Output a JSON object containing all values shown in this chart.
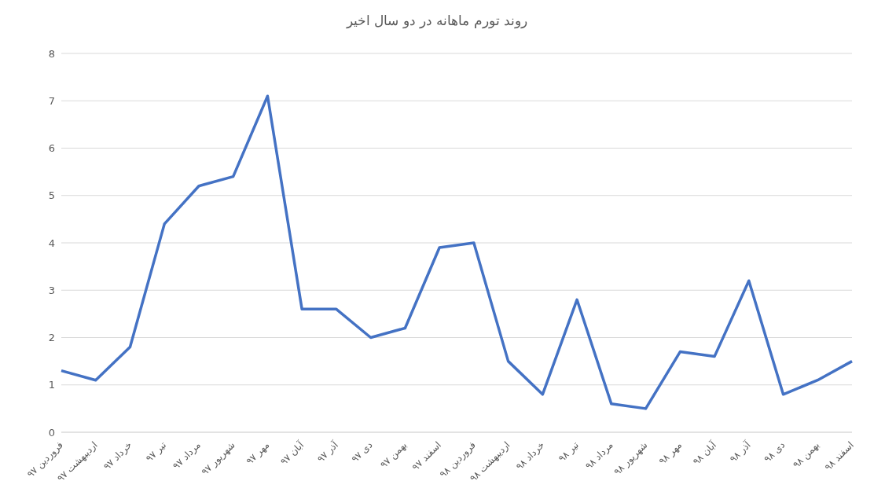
{
  "chart_data": {
    "type": "line",
    "title": "روند تورم ماهانه در دو سال اخیر",
    "categories": [
      "فروردین ۹۷",
      "اردیبهشت ۹۷",
      "خرداد ۹۷",
      "تیر ۹۷",
      "مرداد ۹۷",
      "شهریور ۹۷",
      "مهر ۹۷",
      "آبان ۹۷",
      "آذر ۹۷",
      "دی ۹۷",
      "بهمن ۹۷",
      "اسفند ۹۷",
      "فروردین ۹۸",
      "اردیبهشت ۹۸",
      "خرداد ۹۸",
      "تیر ۹۸",
      "مرداد ۹۸",
      "شهریور ۹۸",
      "مهر ۹۸",
      "آبان ۹۸",
      "آذر ۹۸",
      "دی ۹۸",
      "بهمن ۹۸",
      "اسفند ۹۸"
    ],
    "series": [
      {
        "color": "#4472c4",
        "values": [
          1.3,
          1.1,
          1.8,
          4.4,
          5.2,
          5.4,
          7.1,
          2.6,
          2.6,
          2.0,
          2.2,
          3.9,
          4.0,
          1.5,
          0.8,
          2.8,
          0.6,
          0.5,
          1.7,
          1.6,
          3.2,
          0.8,
          1.1,
          1.5
        ]
      }
    ],
    "ylim": [
      0,
      8
    ],
    "yticks": [
      0,
      1,
      2,
      3,
      4,
      5,
      6,
      7,
      8
    ],
    "grid": "y",
    "legend": false,
    "marker": "none",
    "line_style": "solid"
  }
}
